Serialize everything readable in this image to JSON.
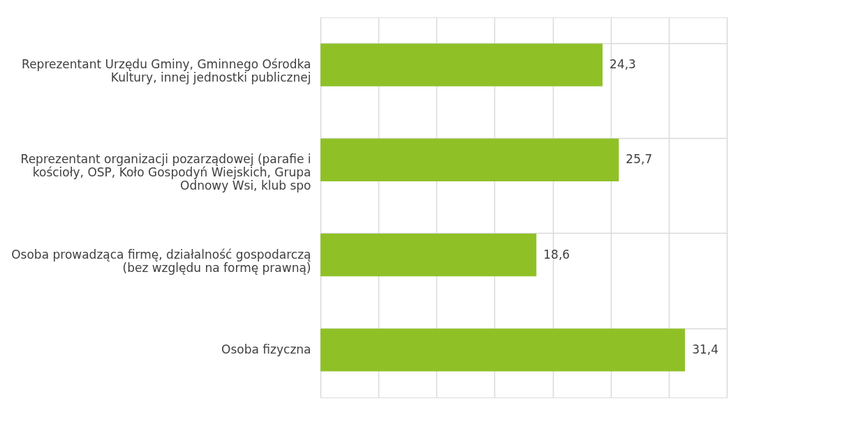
{
  "chart_data": {
    "type": "bar",
    "orientation": "horizontal",
    "categories": [
      "Reprezentant Urzędu Gminy, Gminnego Ośrodka Kultury, innej jednostki publicznej",
      "Reprezentant organizacji pozarządowej (parafie i kościoły, OSP, Koło Gospodyń Wiejskich, Grupa Odnowy Wsi, klub spo",
      "Osoba prowadząca firmę,  działalność gospodarczą (bez względu na formę prawną)",
      "Osoba fizyczna"
    ],
    "values": [
      24.3,
      25.7,
      18.6,
      31.4
    ],
    "value_labels": [
      "24,3",
      "25,7",
      "18,6",
      "31,4"
    ],
    "color": "#8fc127",
    "xlim": [
      0,
      35
    ],
    "xticks": [
      {
        "value": 0,
        "label": null
      },
      {
        "value": 5,
        "label": null
      },
      {
        "value": 10,
        "label": null
      },
      {
        "value": 15,
        "label": null
      },
      {
        "value": 20,
        "label": null
      },
      {
        "value": 25,
        "label": null
      },
      {
        "value": 30,
        "label": null
      },
      {
        "value": 35,
        "label": null
      }
    ],
    "grid": true,
    "tick_labels": "y"
  }
}
